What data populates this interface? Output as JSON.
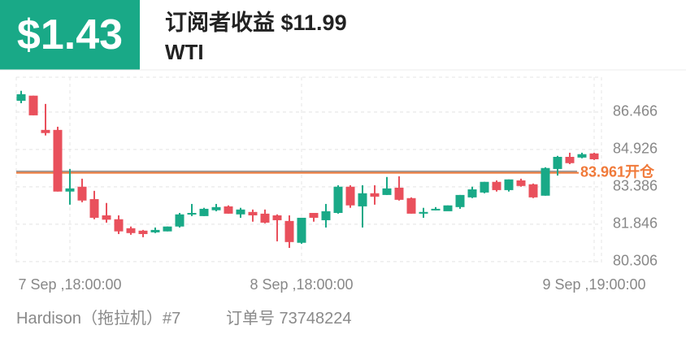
{
  "header": {
    "price": "$1.43",
    "title": "订阅者收益 $11.99",
    "symbol": "WTI"
  },
  "chart_data": {
    "type": "candlestick",
    "categories": [
      null,
      null,
      null,
      null,
      "7 Sep ,18:00:00",
      null,
      null,
      null,
      null,
      null,
      null,
      null,
      null,
      null,
      null,
      null,
      null,
      null,
      null,
      null,
      null,
      null,
      null,
      "8 Sep ,18:00:00",
      null,
      null,
      null,
      null,
      null,
      null,
      null,
      null,
      null,
      null,
      null,
      null,
      null,
      null,
      null,
      null,
      null,
      null,
      null,
      null,
      null,
      null,
      null,
      "9 Sep ,19:00:00"
    ],
    "open": [
      86.93,
      87.14,
      85.73,
      85.73,
      83.19,
      83.39,
      82.88,
      82.21,
      82.05,
      81.68,
      81.58,
      81.51,
      81.55,
      81.75,
      82.25,
      82.18,
      82.42,
      82.58,
      82.25,
      82.35,
      82.28,
      82.21,
      81.98,
      81.08,
      82.31,
      82.01,
      82.31,
      83.39,
      82.58,
      83.12,
      83.05,
      83.35,
      82.92,
      82.28,
      82.45,
      82.38,
      82.55,
      82.95,
      83.15,
      83.59,
      83.25,
      83.65,
      83.49,
      83.02,
      84.12,
      84.62,
      84.59,
      84.76
    ],
    "close": [
      87.2,
      86.33,
      85.6,
      83.19,
      83.32,
      82.82,
      82.11,
      82.03,
      81.55,
      81.48,
      81.44,
      81.61,
      81.75,
      82.25,
      82.31,
      82.48,
      82.55,
      82.28,
      82.45,
      82.21,
      81.91,
      82.01,
      81.11,
      82.11,
      82.11,
      82.38,
      83.39,
      82.62,
      83.12,
      82.98,
      83.32,
      82.85,
      82.28,
      82.35,
      82.48,
      82.62,
      83.05,
      83.28,
      83.59,
      83.25,
      83.69,
      83.42,
      82.95,
      84.16,
      84.62,
      84.36,
      84.73,
      84.52
    ],
    "high": [
      87.34,
      87.14,
      86.8,
      85.86,
      84.12,
      83.72,
      83.22,
      82.72,
      82.21,
      81.75,
      81.61,
      81.71,
      81.75,
      82.31,
      82.68,
      82.52,
      82.68,
      82.62,
      82.52,
      82.45,
      82.45,
      82.25,
      82.21,
      82.11,
      82.28,
      82.68,
      83.45,
      83.45,
      83.45,
      83.45,
      83.79,
      83.82,
      82.95,
      82.52,
      82.55,
      82.62,
      83.05,
      83.39,
      83.59,
      83.65,
      83.69,
      83.72,
      83.52,
      84.19,
      84.66,
      84.79,
      84.79,
      84.79
    ],
    "low": [
      86.83,
      86.33,
      85.5,
      83.19,
      82.65,
      82.75,
      82.05,
      81.91,
      81.44,
      81.41,
      81.31,
      81.48,
      81.55,
      81.71,
      82.18,
      82.18,
      82.38,
      82.28,
      82.11,
      81.95,
      81.88,
      81.14,
      80.87,
      81.04,
      81.95,
      81.71,
      82.28,
      82.52,
      81.71,
      82.65,
      83.05,
      82.82,
      82.28,
      82.11,
      82.42,
      82.45,
      82.48,
      82.92,
      83.12,
      83.19,
      83.19,
      83.39,
      82.92,
      83.02,
      83.85,
      84.32,
      84.56,
      84.49
    ],
    "up_color": "#19a987",
    "down_color": "#e9505c",
    "ylim": [
      80.2,
      87.9
    ],
    "yticks": [
      80.306,
      81.846,
      83.386,
      84.926,
      86.466
    ],
    "price_line": 84.02,
    "price_line_color": "#999999",
    "open_position": {
      "value": 83.961,
      "label": "83.961开仓"
    },
    "open_position_color": "#f07a3a",
    "grid": true
  },
  "footer": {
    "account": "Hardison（拖拉机）#7",
    "order": "订单号 73748224"
  }
}
